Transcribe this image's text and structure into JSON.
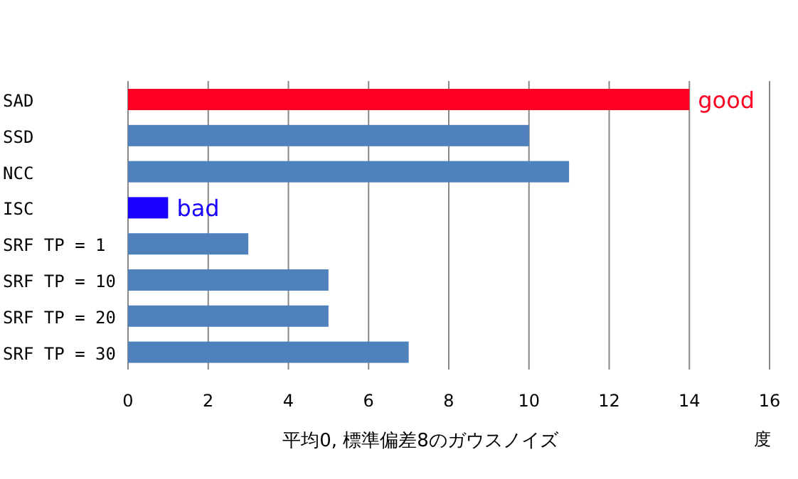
{
  "chart_data": {
    "type": "bar",
    "orientation": "horizontal",
    "xlabel": "平均0, 標準偏差8のガウスノイズ",
    "categories": [
      "SAD",
      "SSD",
      "NCC",
      "ISC",
      "SRF TP = 1",
      "SRF TP = 10",
      "SRF TP = 20",
      "SRF TP = 30"
    ],
    "values": [
      14,
      10,
      11,
      1,
      3,
      5,
      5,
      7
    ],
    "colors": [
      "#ff0022",
      "#4f81bd",
      "#4f81bd",
      "#1a00ff",
      "#4f81bd",
      "#4f81bd",
      "#4f81bd",
      "#4f81bd"
    ],
    "xlim": [
      0,
      16
    ],
    "xticks": [
      0,
      2,
      4,
      6,
      8,
      10,
      12,
      14,
      16
    ],
    "grid": "x",
    "annotations": [
      {
        "text": "good",
        "x": 14,
        "y": "SAD"
      },
      {
        "text": "bad",
        "x": 1,
        "y": "ISC"
      },
      "度"
    ]
  }
}
